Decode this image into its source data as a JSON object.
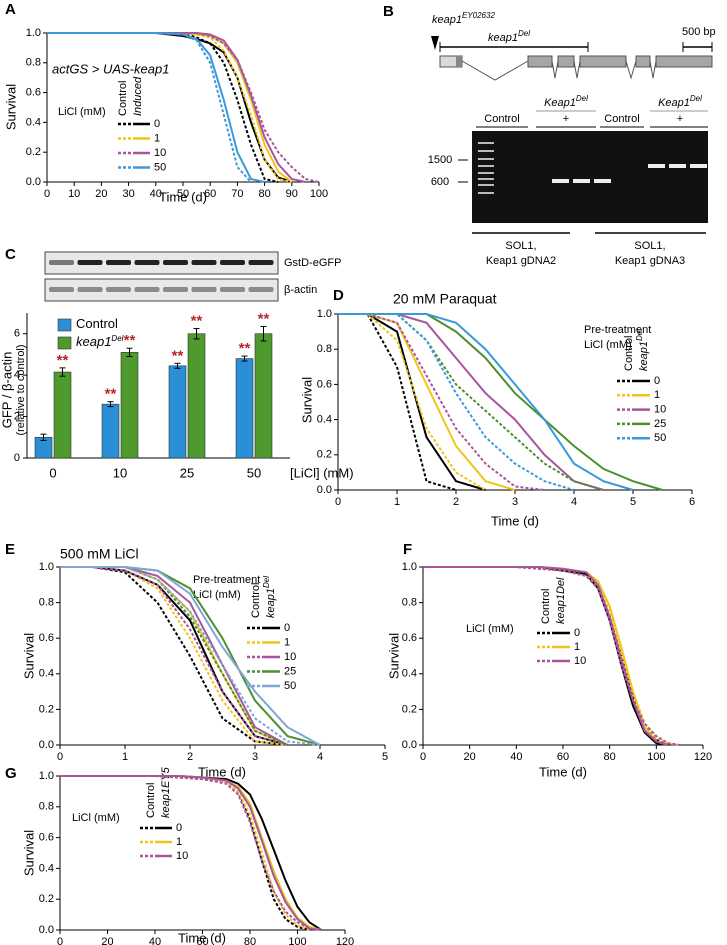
{
  "chart_data": [
    {
      "panel": "A",
      "type": "line",
      "annotation": "actGS > UAS-keap1",
      "xlabel": "Time (d)",
      "ylabel": "Survival",
      "xlim": [
        0,
        100
      ],
      "ylim": [
        0,
        1
      ],
      "xticks": [
        0,
        10,
        20,
        30,
        40,
        50,
        60,
        70,
        80,
        90,
        100
      ],
      "yticks": [
        {
          "value": 0,
          "label": "0.0"
        },
        {
          "value": 0.2,
          "label": "0.2"
        },
        {
          "value": 0.4,
          "label": "0.4"
        },
        {
          "value": 0.6,
          "label": "0.6"
        },
        {
          "value": 0.8,
          "label": "0.8"
        },
        {
          "value": 1,
          "label": "1.0"
        }
      ],
      "legend_title": [
        "LiCl (mM)"
      ],
      "groups": [
        {
          "text": "Control"
        },
        {
          "text": "Induced"
        }
      ],
      "x": [
        0,
        40,
        50,
        55,
        60,
        65,
        70,
        75,
        80,
        85,
        90,
        95,
        100
      ],
      "series": [
        {
          "name": "0",
          "color": "#000000",
          "control": [
            1,
            1,
            1,
            0.97,
            0.93,
            0.8,
            0.55,
            0.25,
            0.02,
            0,
            null,
            null,
            null
          ],
          "treated": [
            1,
            1,
            0.98,
            0.96,
            0.93,
            0.87,
            0.7,
            0.4,
            0.15,
            0.03,
            0,
            null,
            null
          ]
        },
        {
          "name": "1",
          "color": "#f0c419",
          "control": [
            1,
            1,
            1,
            0.99,
            0.97,
            0.88,
            0.7,
            0.45,
            0.15,
            0.02,
            0,
            null,
            null
          ],
          "treated": [
            1,
            1,
            1,
            0.99,
            0.98,
            0.93,
            0.8,
            0.55,
            0.25,
            0.07,
            0,
            null,
            null
          ]
        },
        {
          "name": "10",
          "color": "#a8559e",
          "control": [
            1,
            1,
            1,
            1,
            0.98,
            0.93,
            0.82,
            0.6,
            0.35,
            0.2,
            0.1,
            0.02,
            0
          ],
          "treated": [
            1,
            1,
            1,
            1,
            0.99,
            0.95,
            0.82,
            0.58,
            0.3,
            0.12,
            0.02,
            0,
            null
          ]
        },
        {
          "name": "50",
          "color": "#3a9ad9",
          "control": [
            1,
            1,
            0.99,
            0.95,
            0.8,
            0.45,
            0.1,
            0,
            null,
            null,
            null,
            null,
            null
          ],
          "treated": [
            1,
            1,
            0.99,
            0.96,
            0.85,
            0.55,
            0.2,
            0.02,
            0,
            null,
            null,
            null,
            null
          ]
        }
      ]
    },
    {
      "panel": "C",
      "type": "bar",
      "blots": [
        "GstD-eGFP",
        "β-actin"
      ],
      "categories": [
        "0",
        "10",
        "25",
        "50"
      ],
      "xlabel": "[LiCl] (mM)",
      "ylabel": "GFP / β-actin",
      "ylabel_sub": "(relative to control)",
      "ylim": [
        0,
        7
      ],
      "yticks": [
        0,
        2,
        4,
        6
      ],
      "series": [
        {
          "name": "Control",
          "color": "#2b8fd8",
          "values": [
            1.0,
            2.6,
            4.45,
            4.8
          ],
          "errors": [
            0.15,
            0.12,
            0.12,
            0.12
          ],
          "labels": [
            null,
            "**",
            "**",
            "**"
          ]
        },
        {
          "name": "keap1",
          "name_sup": "Del",
          "color": "#4f9a2f",
          "values": [
            4.15,
            5.1,
            6.0,
            6.0
          ],
          "errors": [
            0.2,
            0.2,
            0.25,
            0.35
          ],
          "labels": [
            "**",
            "**",
            "**",
            "**"
          ]
        }
      ]
    },
    {
      "panel": "D",
      "type": "line",
      "title": "20 mM Paraquat",
      "xlabel": "Time (d)",
      "ylabel": "Survival",
      "xlim": [
        0,
        6
      ],
      "ylim": [
        0,
        1
      ],
      "xticks": [
        0,
        1,
        2,
        3,
        4,
        5,
        6
      ],
      "yticks": [
        {
          "value": 0,
          "label": "0.0"
        },
        {
          "value": 0.2,
          "label": "0.2"
        },
        {
          "value": 0.4,
          "label": "0.4"
        },
        {
          "value": 0.6,
          "label": "0.6"
        },
        {
          "value": 0.8,
          "label": "0.8"
        },
        {
          "value": 1,
          "label": "1.0"
        }
      ],
      "legend_title": [
        "Pre-treatment",
        "LiCl (mM)"
      ],
      "groups": [
        {
          "text": "Control"
        },
        {
          "text": "keap1",
          "sup": "Del"
        }
      ],
      "x": [
        0,
        0.5,
        1,
        1.5,
        2,
        2.5,
        3,
        3.5,
        4,
        4.5,
        5,
        5.5
      ],
      "series": [
        {
          "name": "0",
          "color": "#000000",
          "control": [
            1,
            1,
            0.7,
            0.05,
            0,
            null,
            null,
            null,
            null,
            null,
            null,
            null
          ],
          "treated": [
            1,
            1,
            0.9,
            0.3,
            0.05,
            0,
            null,
            null,
            null,
            null,
            null,
            null
          ]
        },
        {
          "name": "1",
          "color": "#f0c419",
          "control": [
            1,
            1,
            0.85,
            0.35,
            0.1,
            0,
            null,
            null,
            null,
            null,
            null,
            null
          ],
          "treated": [
            1,
            1,
            0.95,
            0.6,
            0.25,
            0.05,
            0,
            null,
            null,
            null,
            null,
            null
          ]
        },
        {
          "name": "10",
          "color": "#a8559e",
          "control": [
            1,
            1,
            0.95,
            0.65,
            0.35,
            0.15,
            0.02,
            0,
            null,
            null,
            null,
            null
          ],
          "treated": [
            1,
            1,
            1,
            0.95,
            0.75,
            0.55,
            0.4,
            0.2,
            0.05,
            0,
            null,
            null
          ]
        },
        {
          "name": "25",
          "color": "#4e8f2e",
          "control": [
            1,
            1,
            1,
            0.85,
            0.6,
            0.45,
            0.3,
            0.15,
            0.05,
            0,
            null,
            null
          ],
          "treated": [
            1,
            1,
            1,
            1,
            0.9,
            0.75,
            0.55,
            0.4,
            0.25,
            0.12,
            0.05,
            0
          ]
        },
        {
          "name": "50",
          "color": "#3a9ad9",
          "control": [
            1,
            1,
            1,
            0.85,
            0.55,
            0.3,
            0.15,
            0.05,
            0,
            null,
            null,
            null
          ],
          "treated": [
            1,
            1,
            1,
            1,
            0.95,
            0.8,
            0.6,
            0.4,
            0.15,
            0.05,
            0,
            null
          ]
        }
      ]
    },
    {
      "panel": "E",
      "type": "line",
      "title": "500 mM LiCl",
      "xlabel": "Time (d)",
      "ylabel": "Survival",
      "xlim": [
        0,
        5
      ],
      "ylim": [
        0,
        1
      ],
      "xticks": [
        0,
        1,
        2,
        3,
        4,
        5
      ],
      "yticks": [
        {
          "value": 0,
          "label": "0.0"
        },
        {
          "value": 0.2,
          "label": "0.2"
        },
        {
          "value": 0.4,
          "label": "0.4"
        },
        {
          "value": 0.6,
          "label": "0.6"
        },
        {
          "value": 0.8,
          "label": "0.8"
        },
        {
          "value": 1,
          "label": "1.0"
        }
      ],
      "legend_title": [
        "Pre-treatment",
        "LiCl (mM)"
      ],
      "groups": [
        {
          "text": "Control"
        },
        {
          "text": "keap1",
          "sup": "Del"
        }
      ],
      "x": [
        0,
        0.5,
        1,
        1.5,
        2,
        2.5,
        3,
        3.5,
        4
      ],
      "series": [
        {
          "name": "0",
          "color": "#000000",
          "control": [
            1,
            1,
            0.97,
            0.8,
            0.5,
            0.15,
            0.02,
            0,
            null
          ],
          "treated": [
            1,
            1,
            0.98,
            0.9,
            0.7,
            0.3,
            0.05,
            0,
            null
          ]
        },
        {
          "name": "1",
          "color": "#f0c419",
          "control": [
            1,
            1,
            0.98,
            0.88,
            0.6,
            0.25,
            0.02,
            0,
            null
          ],
          "treated": [
            1,
            1,
            1,
            0.93,
            0.75,
            0.4,
            0.08,
            0,
            null
          ]
        },
        {
          "name": "10",
          "color": "#a8559e",
          "control": [
            1,
            1,
            0.98,
            0.9,
            0.65,
            0.3,
            0.05,
            0,
            null
          ],
          "treated": [
            1,
            1,
            1,
            0.95,
            0.8,
            0.45,
            0.1,
            0,
            null
          ]
        },
        {
          "name": "25",
          "color": "#4e8f2e",
          "control": [
            1,
            1,
            1,
            0.93,
            0.72,
            0.4,
            0.08,
            0,
            null
          ],
          "treated": [
            1,
            1,
            1,
            0.98,
            0.88,
            0.6,
            0.25,
            0.05,
            0
          ]
        },
        {
          "name": "50",
          "color": "#7fa7d6",
          "control": [
            1,
            1,
            1,
            0.93,
            0.75,
            0.45,
            0.15,
            0.02,
            0
          ],
          "treated": [
            1,
            1,
            1,
            0.98,
            0.85,
            0.55,
            0.3,
            0.1,
            0
          ]
        }
      ]
    },
    {
      "panel": "F",
      "type": "line",
      "xlabel": "Time (d)",
      "ylabel": "Survival",
      "xlim": [
        0,
        120
      ],
      "ylim": [
        0,
        1
      ],
      "xticks": [
        0,
        20,
        40,
        60,
        80,
        100,
        120
      ],
      "yticks": [
        {
          "value": 0,
          "label": "0.0"
        },
        {
          "value": 0.2,
          "label": "0.2"
        },
        {
          "value": 0.4,
          "label": "0.4"
        },
        {
          "value": 0.6,
          "label": "0.6"
        },
        {
          "value": 0.8,
          "label": "0.8"
        },
        {
          "value": 1,
          "label": "1.0"
        }
      ],
      "legend_title": [
        "LiCl (mM)"
      ],
      "groups": [
        {
          "text": "Control"
        },
        {
          "text": "keap1Del"
        }
      ],
      "x": [
        0,
        40,
        50,
        60,
        70,
        75,
        80,
        85,
        90,
        95,
        100,
        105,
        110
      ],
      "series": [
        {
          "name": "0",
          "color": "#000000",
          "control": [
            1,
            1,
            0.99,
            0.98,
            0.95,
            0.88,
            0.72,
            0.5,
            0.28,
            0.1,
            0.03,
            0,
            null
          ],
          "treated": [
            1,
            1,
            1,
            0.98,
            0.96,
            0.88,
            0.7,
            0.45,
            0.22,
            0.07,
            0.01,
            0,
            null
          ]
        },
        {
          "name": "1",
          "color": "#f0c419",
          "control": [
            1,
            1,
            0.99,
            0.98,
            0.95,
            0.9,
            0.75,
            0.52,
            0.3,
            0.12,
            0.04,
            0.01,
            0
          ],
          "treated": [
            1,
            1,
            1,
            0.99,
            0.97,
            0.92,
            0.78,
            0.55,
            0.3,
            0.1,
            0.02,
            0,
            null
          ]
        },
        {
          "name": "10",
          "color": "#a8559e",
          "control": [
            1,
            1,
            0.99,
            0.98,
            0.95,
            0.88,
            0.7,
            0.45,
            0.25,
            0.12,
            0.05,
            0.01,
            0
          ],
          "treated": [
            1,
            1,
            1,
            0.99,
            0.97,
            0.9,
            0.72,
            0.48,
            0.25,
            0.08,
            0.02,
            0,
            null
          ]
        }
      ]
    },
    {
      "panel": "G",
      "type": "line",
      "xlabel": "Time (d)",
      "ylabel": "Survival",
      "xlim": [
        0,
        120
      ],
      "ylim": [
        0,
        1
      ],
      "xticks": [
        0,
        20,
        40,
        60,
        80,
        100,
        120
      ],
      "yticks": [
        {
          "value": 0,
          "label": "0.0"
        },
        {
          "value": 0.2,
          "label": "0.2"
        },
        {
          "value": 0.4,
          "label": "0.4"
        },
        {
          "value": 0.6,
          "label": "0.6"
        },
        {
          "value": 0.8,
          "label": "0.8"
        },
        {
          "value": 1,
          "label": "1.0"
        }
      ],
      "legend_title": [
        "LiCl (mM)"
      ],
      "groups": [
        {
          "text": "Control"
        },
        {
          "text": "keap1EY5"
        }
      ],
      "x": [
        0,
        40,
        50,
        60,
        70,
        75,
        80,
        85,
        90,
        95,
        100,
        105,
        110
      ],
      "series": [
        {
          "name": "0",
          "color": "#000000",
          "control": [
            1,
            1,
            0.99,
            0.98,
            0.96,
            0.9,
            0.72,
            0.45,
            0.2,
            0.07,
            0.02,
            0,
            null
          ],
          "treated": [
            1,
            1,
            1,
            0.99,
            0.98,
            0.95,
            0.88,
            0.72,
            0.52,
            0.32,
            0.15,
            0.05,
            0
          ]
        },
        {
          "name": "1",
          "color": "#f0c419",
          "control": [
            1,
            1,
            0.99,
            0.98,
            0.96,
            0.9,
            0.75,
            0.5,
            0.25,
            0.1,
            0.03,
            0,
            null
          ],
          "treated": [
            1,
            1,
            1,
            0.99,
            0.97,
            0.93,
            0.82,
            0.6,
            0.38,
            0.2,
            0.08,
            0.02,
            0
          ]
        },
        {
          "name": "10",
          "color": "#a8559e",
          "control": [
            1,
            1,
            0.99,
            0.98,
            0.95,
            0.88,
            0.7,
            0.45,
            0.25,
            0.12,
            0.05,
            0.01,
            0
          ],
          "treated": [
            1,
            1,
            1,
            0.99,
            0.97,
            0.92,
            0.8,
            0.58,
            0.35,
            0.18,
            0.07,
            0.01,
            0
          ]
        }
      ]
    }
  ],
  "panel_b": {
    "label": "B",
    "allele": "keap1",
    "allele_sup": "EY02632",
    "deletion": "keap1",
    "deletion_sup": "Del",
    "scale_bar": "500 bp",
    "lanes": [
      {
        "text": "Control"
      },
      {
        "text": "Keap1",
        "sup": "Del",
        "sign": "+"
      },
      {
        "text": "Control"
      },
      {
        "text": "Keap1",
        "sup": "Del",
        "sign": "+"
      }
    ],
    "markers": [
      "1500",
      "600"
    ],
    "primers": [
      [
        "SOL1,",
        "Keap1 gDNA2"
      ],
      [
        "SOL1,",
        "Keap1 gDNA3"
      ]
    ]
  }
}
